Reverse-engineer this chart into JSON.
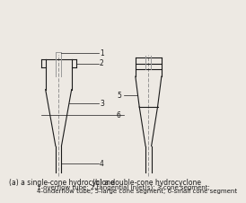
{
  "bg_color": "#ede9e3",
  "line_color": "#1a1a1a",
  "dash_color": "#888888",
  "label_a": "(a) a single-cone hydrocyclone",
  "label_b": "(b) a double-cone hydrocyclone",
  "legend_line1": "1-overflow tube; 2-tangential inlet(s); 3-cone segment;",
  "legend_line2": "4-underflow tube; 5-large cone segment; 6-small cone segment",
  "font_size": 5.5,
  "title_font_size": 5.5
}
